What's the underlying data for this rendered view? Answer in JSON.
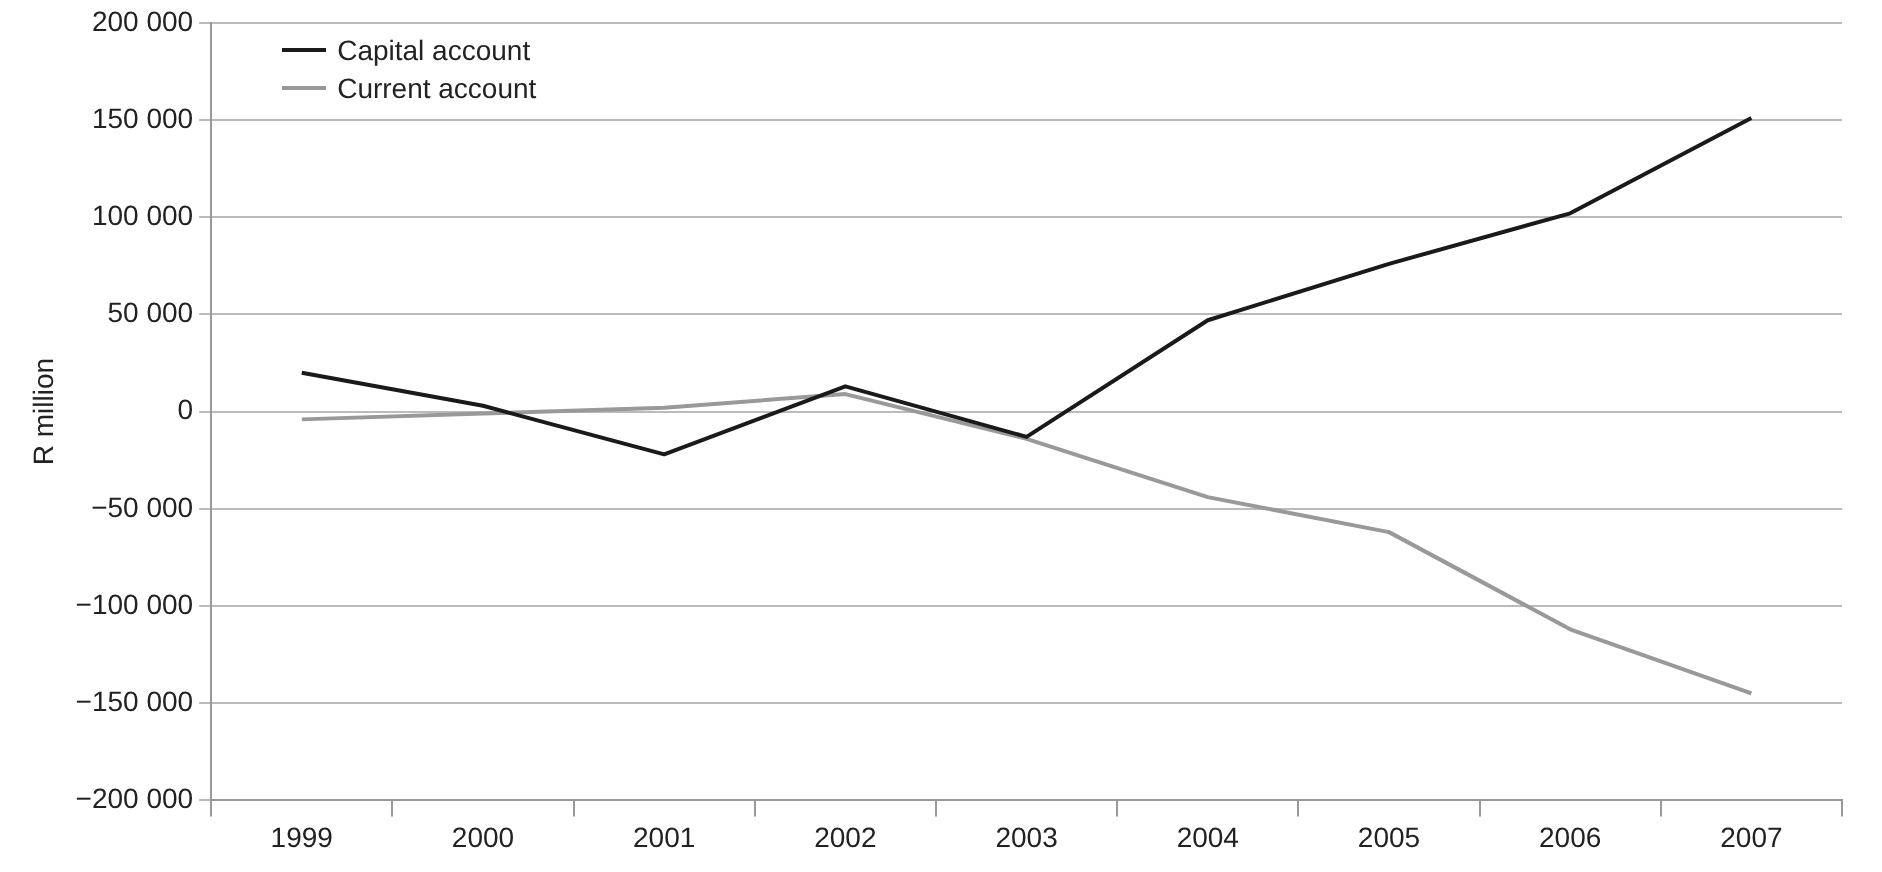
{
  "chart_data": {
    "type": "line",
    "ylabel": "R million",
    "categories": [
      "1999",
      "2000",
      "2001",
      "2002",
      "2003",
      "2004",
      "2005",
      "2006",
      "2007"
    ],
    "series": [
      {
        "name": "Capital account",
        "color": "#1a1a1a",
        "values": [
          20000,
          3000,
          -22000,
          13000,
          -13000,
          47000,
          76000,
          102000,
          151000
        ]
      },
      {
        "name": "Current account",
        "color": "#999999",
        "values": [
          -4000,
          -1000,
          2000,
          9000,
          -14000,
          -44000,
          -62000,
          -112000,
          -145000
        ]
      }
    ],
    "ylim": [
      -200000,
      200000
    ],
    "yticks": [
      {
        "value": -200000,
        "label": "−200 000"
      },
      {
        "value": -150000,
        "label": "−150 000"
      },
      {
        "value": -100000,
        "label": "−100 000"
      },
      {
        "value": -50000,
        "label": "−50 000"
      },
      0,
      {
        "value": 50000,
        "label": "50 000"
      },
      {
        "value": 100000,
        "label": "100 000"
      },
      {
        "value": 150000,
        "label": "150 000"
      },
      {
        "value": 200000,
        "label": "200 000"
      }
    ],
    "grid": "y",
    "legend": "top left",
    "marker": "none",
    "line_style": "solid"
  }
}
